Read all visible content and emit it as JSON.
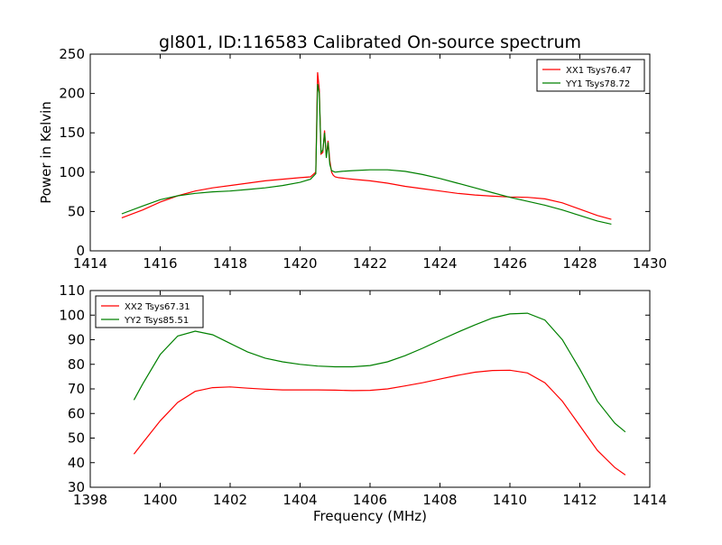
{
  "chart_data": [
    {
      "type": "line",
      "title": "gl801, ID:116583 Calibrated On-source spectrum",
      "xlabel": "",
      "ylabel": "Power in Kelvin",
      "xlim": [
        1414,
        1430
      ],
      "ylim": [
        0,
        250
      ],
      "xticks": [
        "1414",
        "1416",
        "1418",
        "1420",
        "1422",
        "1424",
        "1426",
        "1428",
        "1430"
      ],
      "yticks": [
        "0",
        "50",
        "100",
        "150",
        "200",
        "250"
      ],
      "grid": false,
      "legend_position": "top-right",
      "series": [
        {
          "name": "XX1 Tsys76.47",
          "color": "#ff0000",
          "x": [
            1414.9,
            1415.5,
            1416.0,
            1416.5,
            1417.0,
            1417.5,
            1418.0,
            1418.5,
            1419.0,
            1419.5,
            1420.0,
            1420.3,
            1420.45,
            1420.5,
            1420.55,
            1420.6,
            1420.65,
            1420.7,
            1420.75,
            1420.8,
            1420.85,
            1420.9,
            1420.95,
            1421.0,
            1421.1,
            1421.5,
            1422.0,
            1422.5,
            1423.0,
            1423.5,
            1424.0,
            1424.5,
            1425.0,
            1425.5,
            1426.0,
            1426.5,
            1427.0,
            1427.5,
            1428.0,
            1428.5,
            1428.9
          ],
          "y": [
            42,
            52,
            62,
            70,
            76,
            80,
            83,
            86,
            89,
            91,
            93,
            94,
            100,
            227,
            205,
            123,
            125,
            153,
            120,
            140,
            115,
            100,
            96,
            94,
            93,
            91,
            89,
            86,
            82,
            79,
            76,
            73,
            71,
            69.5,
            68.5,
            68,
            66,
            61,
            53,
            45,
            40
          ]
        },
        {
          "name": "YY1 Tsys78.72",
          "color": "#008000",
          "x": [
            1414.9,
            1415.5,
            1416.0,
            1416.5,
            1417.0,
            1417.5,
            1418.0,
            1418.5,
            1419.0,
            1419.5,
            1420.0,
            1420.3,
            1420.45,
            1420.5,
            1420.55,
            1420.6,
            1420.65,
            1420.7,
            1420.75,
            1420.8,
            1420.85,
            1420.9,
            1420.95,
            1421.0,
            1421.2,
            1421.5,
            1422.0,
            1422.5,
            1423.0,
            1423.5,
            1424.0,
            1424.5,
            1425.0,
            1425.5,
            1426.0,
            1426.5,
            1427.0,
            1427.5,
            1428.0,
            1428.5,
            1428.9
          ],
          "y": [
            47,
            57,
            65,
            70,
            73,
            75,
            76,
            78,
            80,
            83,
            87,
            91,
            98,
            212,
            200,
            125,
            128,
            150,
            118,
            138,
            110,
            102,
            101,
            100,
            101,
            102,
            103,
            103,
            101,
            97,
            92,
            86,
            80,
            74,
            68,
            63,
            58,
            52,
            45,
            38,
            34
          ]
        }
      ]
    },
    {
      "type": "line",
      "title": "",
      "xlabel": "Frequency (MHz)",
      "ylabel": "",
      "xlim": [
        1398,
        1414
      ],
      "ylim": [
        30,
        110
      ],
      "xticks": [
        "1398",
        "1400",
        "1402",
        "1404",
        "1406",
        "1408",
        "1410",
        "1412",
        "1414"
      ],
      "yticks": [
        "30",
        "40",
        "50",
        "60",
        "70",
        "80",
        "90",
        "100",
        "110"
      ],
      "grid": false,
      "legend_position": "top-left",
      "series": [
        {
          "name": "XX2 Tsys67.31",
          "color": "#ff0000",
          "x": [
            1399.25,
            1399.5,
            1400.0,
            1400.5,
            1401.0,
            1401.5,
            1402.0,
            1402.5,
            1403.0,
            1403.5,
            1404.0,
            1404.5,
            1405.0,
            1405.5,
            1406.0,
            1406.5,
            1407.0,
            1407.5,
            1408.0,
            1408.5,
            1409.0,
            1409.5,
            1410.0,
            1410.5,
            1411.0,
            1411.5,
            1412.0,
            1412.5,
            1413.0,
            1413.3
          ],
          "y": [
            43.5,
            48,
            57,
            64.5,
            69,
            70.5,
            70.8,
            70.3,
            69.9,
            69.6,
            69.6,
            69.6,
            69.5,
            69.3,
            69.4,
            70,
            71.2,
            72.5,
            74,
            75.5,
            76.8,
            77.5,
            77.6,
            76.5,
            72.5,
            65,
            55,
            45,
            38,
            35
          ]
        },
        {
          "name": "YY2 Tsys85.51",
          "color": "#008000",
          "x": [
            1399.25,
            1399.5,
            1400.0,
            1400.5,
            1401.0,
            1401.5,
            1402.0,
            1402.5,
            1403.0,
            1403.5,
            1404.0,
            1404.5,
            1405.0,
            1405.5,
            1406.0,
            1406.5,
            1407.0,
            1407.5,
            1408.0,
            1408.5,
            1409.0,
            1409.5,
            1410.0,
            1410.5,
            1411.0,
            1411.5,
            1412.0,
            1412.5,
            1413.0,
            1413.3
          ],
          "y": [
            65.5,
            72,
            84,
            91.5,
            93.5,
            92,
            88.5,
            85,
            82.5,
            81,
            80,
            79.3,
            79,
            79,
            79.5,
            81,
            83.5,
            86.5,
            89.8,
            93,
            96,
            98.8,
            100.5,
            100.8,
            98,
            90,
            78,
            65,
            56,
            52.5
          ]
        }
      ]
    }
  ]
}
